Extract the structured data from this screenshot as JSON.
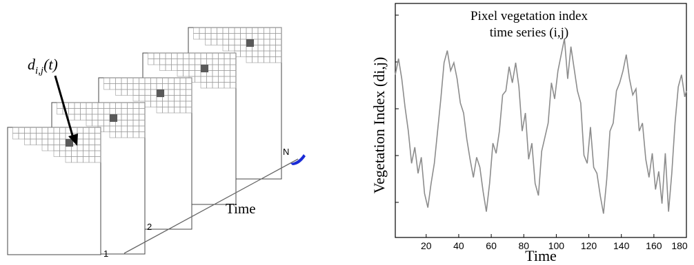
{
  "left_diagram": {
    "pixel_label": "d",
    "pixel_label_sub": "i,j",
    "pixel_label_tail": "(t)",
    "frame_labels": [
      "1",
      "2",
      "N"
    ],
    "axis_label": "Time",
    "colors": {
      "frame_stroke": "#444444",
      "grid_stroke": "#9a9a9a",
      "pixel_fill": "#5a5a5a",
      "arrow": "#000000",
      "marker": "#1a2bd6"
    }
  },
  "chart_data": {
    "type": "line",
    "title": "Pixel vegetation index",
    "subtitle": "time series (i,j)",
    "xlabel": "Time",
    "ylabel": "Vegetation Index (di,j)",
    "xlim": [
      1,
      180
    ],
    "ylim": [
      0,
      1
    ],
    "x_ticks": [
      20,
      40,
      60,
      80,
      100,
      120,
      140,
      160,
      180
    ],
    "y_ticks": [],
    "grid": false,
    "colors": {
      "line": "#8c8c8c",
      "axes": "#000000"
    },
    "series": [
      {
        "x": [
          1,
          3,
          5,
          7,
          9,
          11,
          13,
          15,
          17,
          19,
          21,
          23,
          25,
          27,
          29,
          31,
          33,
          35,
          37,
          39,
          41,
          43,
          45,
          47,
          49,
          51,
          53,
          55,
          57,
          59,
          61,
          63,
          65,
          67,
          69,
          71,
          73,
          75,
          77,
          79,
          81,
          83,
          85,
          87,
          89,
          91,
          93,
          95,
          97,
          99,
          101,
          103,
          105,
          107,
          109,
          111,
          113,
          115,
          117,
          119,
          121,
          123,
          125,
          127,
          129,
          131,
          133,
          135,
          137,
          139,
          141,
          143,
          145,
          147,
          149,
          151,
          153,
          155,
          157,
          159,
          161,
          163,
          165,
          167,
          169,
          171,
          173,
          175,
          177,
          179,
          180
        ],
        "y": [
          0.74,
          0.82,
          0.72,
          0.58,
          0.46,
          0.3,
          0.38,
          0.25,
          0.33,
          0.15,
          0.08,
          0.2,
          0.3,
          0.46,
          0.62,
          0.8,
          0.86,
          0.76,
          0.8,
          0.72,
          0.6,
          0.55,
          0.42,
          0.32,
          0.23,
          0.33,
          0.28,
          0.16,
          0.06,
          0.2,
          0.4,
          0.35,
          0.46,
          0.64,
          0.66,
          0.78,
          0.7,
          0.8,
          0.68,
          0.46,
          0.55,
          0.32,
          0.4,
          0.2,
          0.14,
          0.36,
          0.43,
          0.5,
          0.7,
          0.62,
          0.76,
          0.84,
          0.92,
          0.72,
          0.88,
          0.77,
          0.66,
          0.6,
          0.34,
          0.3,
          0.48,
          0.28,
          0.25,
          0.14,
          0.05,
          0.22,
          0.46,
          0.5,
          0.66,
          0.7,
          0.76,
          0.84,
          0.72,
          0.64,
          0.67,
          0.46,
          0.5,
          0.32,
          0.23,
          0.35,
          0.17,
          0.26,
          0.1,
          0.35,
          0.06,
          0.25,
          0.5,
          0.68,
          0.74,
          0.63,
          0.66
        ]
      }
    ]
  }
}
